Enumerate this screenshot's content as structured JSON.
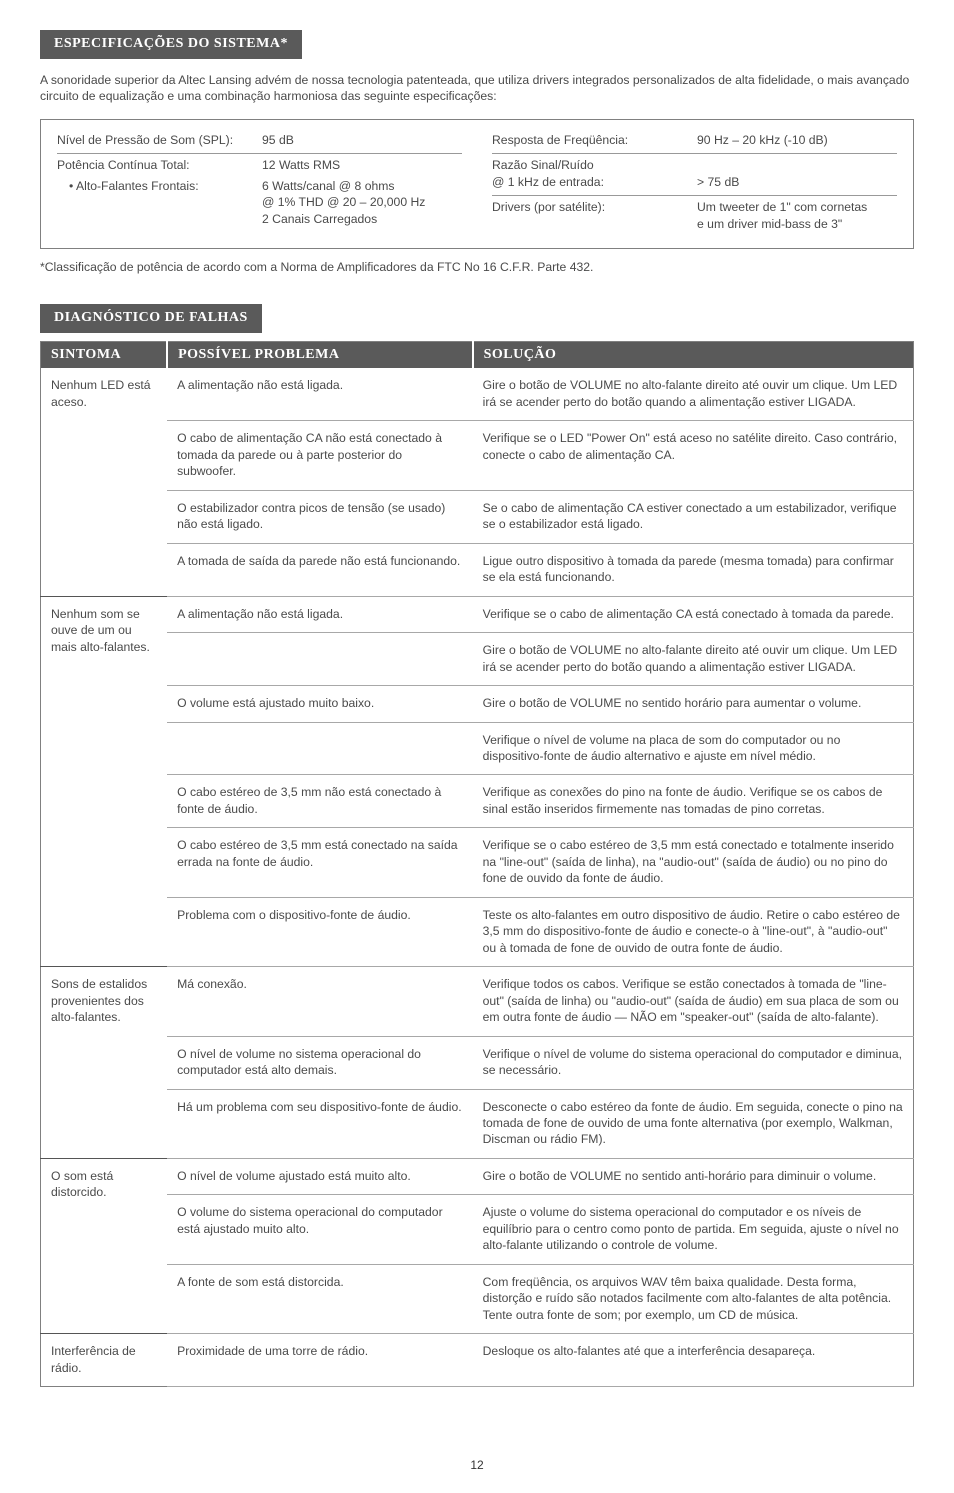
{
  "sections": {
    "spec_title": "ESPECIFICAÇÕES DO SISTEMA*",
    "diag_title": "DIAGNÓSTICO DE FALHAS"
  },
  "intro": "A sonoridade superior da Altec Lansing advém de nossa tecnologia patenteada, que utiliza drivers integrados personalizados de alta fidelidade, o mais avançado circuito de equalização e uma combinação harmoniosa das seguinte especificações:",
  "specs_left": {
    "spl_label": "Nível de Pressão de Som (SPL):",
    "spl_val": "95 dB",
    "power_label": "Potência Contínua Total:",
    "power_val": "12 Watts RMS",
    "front_label": "• Alto-Falantes Frontais:",
    "front_l1": "6 Watts/canal @ 8 ohms",
    "front_l2": "@ 1% THD @ 20 – 20,000 Hz",
    "front_l3": "2 Canais Carregados"
  },
  "specs_right": {
    "freq_label": "Resposta de Freqüência:",
    "freq_val": "90 Hz – 20 kHz (-10 dB)",
    "snr_label1": "Razão Sinal/Ruído",
    "snr_label2": "@ 1 kHz de entrada:",
    "snr_val": "> 75 dB",
    "drv_label": "Drivers (por satélite):",
    "drv_l1": "Um tweeter de 1\" com cornetas",
    "drv_l2": "e um driver mid-bass de 3\""
  },
  "footnote": "*Classificação de potência de acordo com a Norma de Amplificadores da FTC No 16 C.F.R. Parte 432.",
  "headers": {
    "c1": "SINTOMA",
    "c2": "POSSÍVEL PROBLEMA",
    "c3": "SOLUÇÃO"
  },
  "rows": [
    {
      "g": 1,
      "s": "Nenhum LED está aceso.",
      "p": "A alimentação não está ligada.",
      "f": "Gire o botão de VOLUME no alto-falante direito até ouvir um clique. Um LED irá se acender perto do botão quando a alimentação estiver LIGADA."
    },
    {
      "g": 0,
      "s": "",
      "p": "O cabo de alimentação CA não está conectado à tomada da parede ou à parte posterior do subwoofer.",
      "f": "Verifique se o LED \"Power On\" está aceso no satélite direito. Caso contrário, conecte o cabo de alimentação CA."
    },
    {
      "g": 0,
      "s": "",
      "p": "O estabilizador contra picos de tensão (se usado) não está ligado.",
      "f": "Se o cabo de alimentação CA estiver conectado a um estabilizador, verifique se o estabilizador está ligado."
    },
    {
      "g": 0,
      "s": "",
      "p": "A tomada de saída da parede não está funcionando.",
      "f": "Ligue outro dispositivo à tomada da parede (mesma tomada) para confirmar se ela está funcionando."
    },
    {
      "g": 1,
      "s": "Nenhum som se ouve de um ou mais alto-falantes.",
      "p": "A alimentação não está ligada.",
      "f": "Verifique se o cabo de alimentação CA está conectado à tomada da parede."
    },
    {
      "g": 0,
      "s": "",
      "p": "",
      "f": "Gire o botão de VOLUME no alto-falante direito até ouvir um clique. Um LED irá se acender perto do botão quando a alimentação estiver LIGADA."
    },
    {
      "g": 0,
      "s": "",
      "p": "O volume está ajustado muito baixo.",
      "f": "Gire o botão de VOLUME no sentido horário para aumentar o volume."
    },
    {
      "g": 0,
      "s": "",
      "p": "",
      "f": "Verifique o nível de volume na placa de som do computador ou no dispositivo-fonte de áudio alternativo e ajuste em nível médio."
    },
    {
      "g": 0,
      "s": "",
      "p": "O cabo estéreo de 3,5 mm não está conectado à fonte de áudio.",
      "f": "Verifique as conexões do pino na fonte de áudio. Verifique se os cabos de sinal estão inseridos firmemente nas tomadas de pino corretas."
    },
    {
      "g": 0,
      "s": "",
      "p": "O cabo estéreo de 3,5 mm está conectado na saída errada na fonte de áudio.",
      "f": "Verifique se o cabo estéreo de 3,5 mm está conectado e totalmente inserido na \"line-out\" (saída de linha), na \"audio-out\" (saída de áudio) ou no pino do fone de ouvido da fonte de áudio."
    },
    {
      "g": 0,
      "s": "",
      "p": "Problema com o dispositivo-fonte de áudio.",
      "f": "Teste os alto-falantes em outro dispositivo de áudio. Retire o cabo estéreo de 3,5 mm do dispositivo-fonte de áudio e conecte-o à \"line-out\", à \"audio-out\" ou à tomada de fone de ouvido de outra fonte de áudio."
    },
    {
      "g": 1,
      "s": "Sons de estalidos provenientes dos alto-falantes.",
      "p": "Má conexão.",
      "f": "Verifique todos os cabos. Verifique se estão conectados à tomada de \"line-out\" (saída de linha) ou \"audio-out\" (saída de áudio) em sua placa de som ou em outra fonte de áudio — NÃO em \"speaker-out\" (saída de alto-falante)."
    },
    {
      "g": 0,
      "s": "",
      "p": "O nível de volume no sistema operacional do computador está alto demais.",
      "f": "Verifique o nível de volume do sistema operacional do computador e diminua, se necessário."
    },
    {
      "g": 0,
      "s": "",
      "p": "Há um problema com seu dispositivo-fonte de áudio.",
      "f": "Desconecte o cabo estéreo da fonte de áudio. Em seguida, conecte o pino na tomada de fone de ouvido de uma fonte alternativa (por exemplo, Walkman, Discman ou rádio FM)."
    },
    {
      "g": 1,
      "s": "O som está distorcido.",
      "p": "O nível de volume ajustado está muito alto.",
      "f": "Gire o botão de VOLUME no sentido anti-horário para diminuir o volume."
    },
    {
      "g": 0,
      "s": "",
      "p": "O volume do sistema operacional do computador está ajustado muito alto.",
      "f": "Ajuste o volume do sistema operacional do computador e os níveis de equilíbrio para o centro como ponto de partida. Em seguida, ajuste o nível no alto-falante utilizando o controle de volume."
    },
    {
      "g": 0,
      "s": "",
      "p": "A fonte de som está distorcida.",
      "f": "Com freqüência, os arquivos WAV têm baixa qualidade. Desta forma, distorção e ruído são notados facilmente com alto-falantes de alta potência. Tente outra fonte de som; por exemplo, um CD de música."
    },
    {
      "g": 1,
      "s": "Interferência de rádio.",
      "p": "Proximidade de uma torre de rádio.",
      "f": "Desloque os alto-falantes até que a interferência desapareça."
    }
  ],
  "page": "12"
}
